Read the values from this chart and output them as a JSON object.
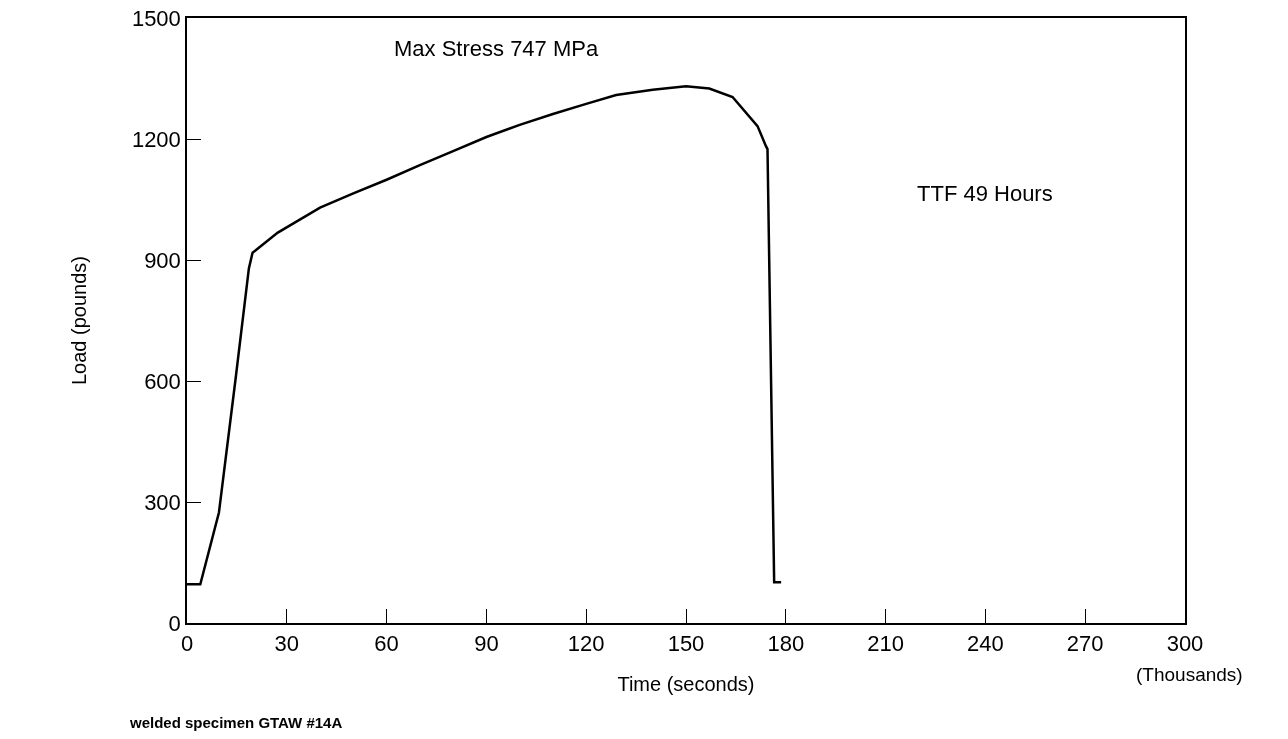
{
  "chart_data": {
    "type": "line",
    "xlabel": "Time (seconds)",
    "ylabel": "Load (pounds)",
    "x": [
      0,
      4,
      9.6,
      14.6,
      18.6,
      19.7,
      27.3,
      40,
      50,
      60,
      70,
      80,
      90,
      100,
      110,
      120,
      129,
      140,
      150,
      157,
      164,
      171.5,
      174,
      174.5,
      176.5,
      178.6
    ],
    "series": [
      {
        "color": "#000000",
        "values": [
          96,
          96,
          274,
          605,
          879,
          918,
          968,
          1030,
          1065,
          1099,
          1135,
          1170,
          1205,
          1235,
          1262,
          1287,
          1309,
          1322,
          1331,
          1325,
          1304,
          1232,
          1183,
          1175,
          101,
          101
        ]
      }
    ],
    "xlim": [
      0,
      300
    ],
    "xticks": [
      0,
      30,
      60,
      90,
      120,
      150,
      180,
      210,
      240,
      270,
      300
    ],
    "ylim": [
      0,
      1500
    ],
    "yticks": [
      0,
      300,
      600,
      900,
      1200,
      1500
    ],
    "marker": "none",
    "line_style": "solid",
    "annotations": [
      "Max Stress 747 MPa",
      "TTF 49 Hours",
      "(Thousands)",
      "welded specimen GTAW #14A"
    ]
  }
}
